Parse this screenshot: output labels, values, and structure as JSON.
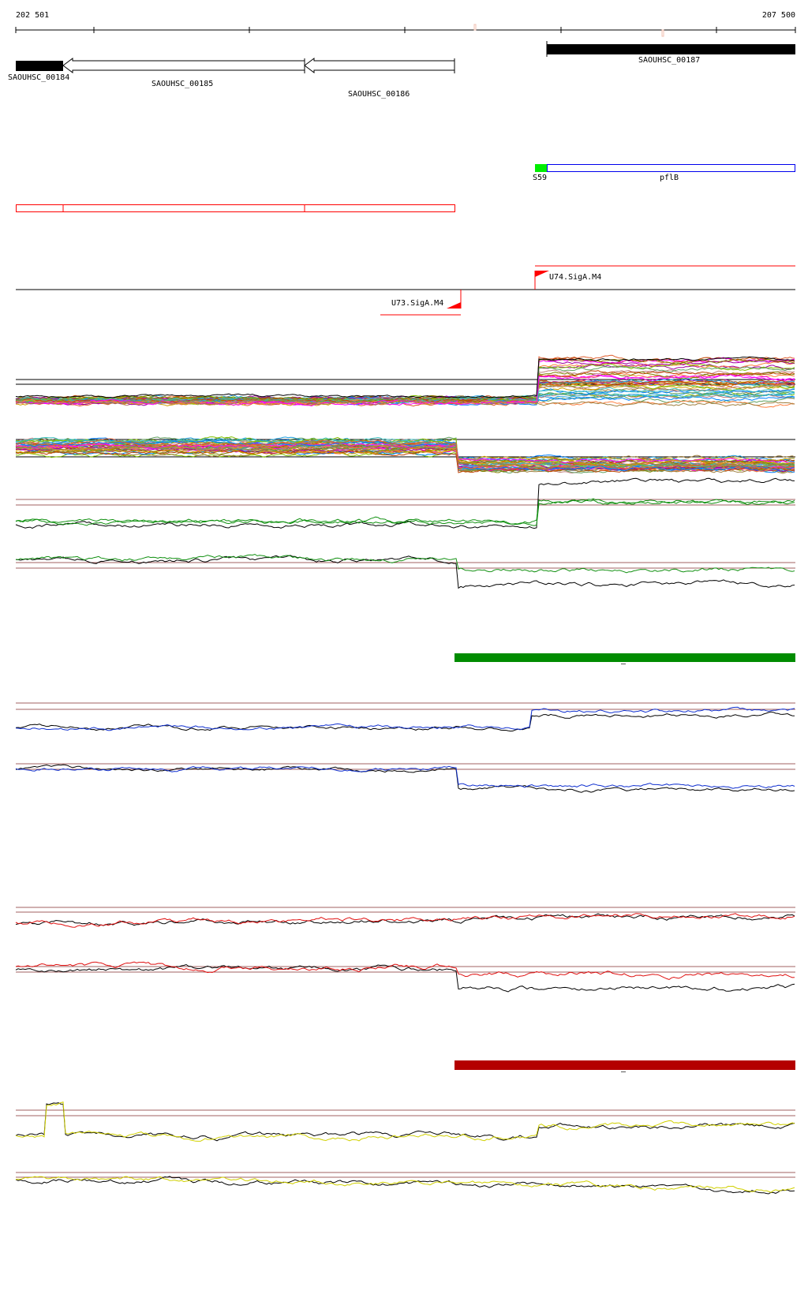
{
  "ruler": {
    "start_label": "202 501",
    "end_label": "207 500"
  },
  "genes": [
    {
      "name": "SAOUHSC_00184",
      "strand": "+",
      "style": "filled"
    },
    {
      "name": "SAOUHSC_00185",
      "strand": "-",
      "style": "outline-arrow"
    },
    {
      "name": "SAOUHSC_00186",
      "strand": "-",
      "style": "outline-arrow"
    },
    {
      "name": "SAOUHSC_00187",
      "strand": "+",
      "style": "filled"
    }
  ],
  "features": {
    "s59_label": "S59",
    "pflb_label": "pflB"
  },
  "promoters": [
    {
      "name": "U74.SigA.M4",
      "strand": "+"
    },
    {
      "name": "U73.SigA.M4",
      "strand": "-"
    }
  ],
  "segment_bars": [
    {
      "label": "–",
      "color": "#008c00"
    },
    {
      "label": "–",
      "color": "#b40000"
    }
  ],
  "colors": {
    "gene": "#000000",
    "s59": "#00ee00",
    "pflb": "#0000ee",
    "operon": "#ff0000",
    "threshold": "#a06060",
    "track_green": "#109010",
    "track_blue": "#1030d0",
    "track_red": "#e01010",
    "track_yellow": "#d0d000"
  }
}
